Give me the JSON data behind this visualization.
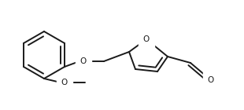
{
  "bg_color": "#ffffff",
  "line_color": "#1a1a1a",
  "line_width": 1.4,
  "font_size": 7.5,
  "figsize": [
    3.1,
    1.4
  ],
  "dpi": 100,
  "xlim": [
    0,
    310
  ],
  "ylim": [
    0,
    140
  ]
}
